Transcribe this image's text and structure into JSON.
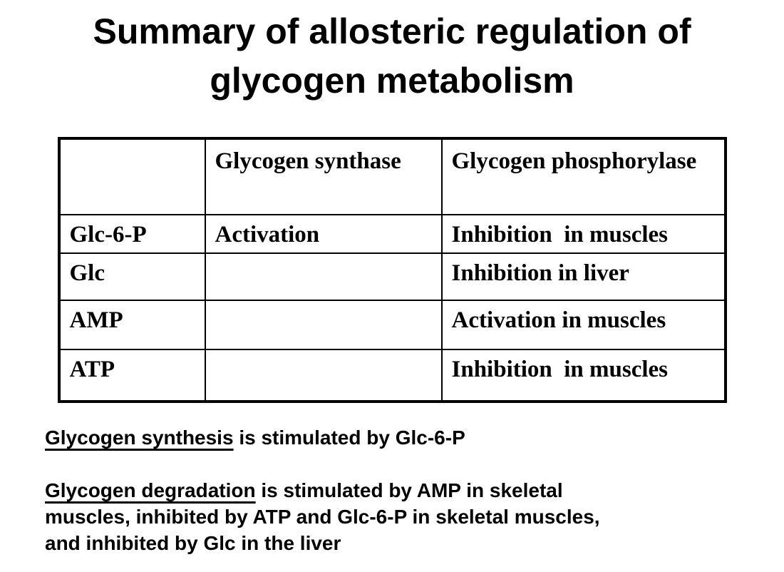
{
  "title": {
    "text": "Summary of allosteric regulation of glycogen metabolism"
  },
  "table": {
    "columns": [
      "",
      "Glycogen synthase",
      "Glycogen phosphorylase"
    ],
    "rows": [
      [
        "Glc-6-P",
        "Activation",
        "Inhibition  in muscles"
      ],
      [
        "Glc",
        "",
        "Inhibition in liver"
      ],
      [
        "AMP",
        "",
        "Activation in muscles"
      ],
      [
        "ATP",
        "",
        "Inhibition  in muscles"
      ]
    ]
  },
  "notes": {
    "synthesis": {
      "underlined": "Glycogen synthesis",
      "rest": " is stimulated by Glc-6-P"
    },
    "degradation": {
      "underlined": "Glycogen degradation",
      "rest": " is stimulated by AMP in skeletal",
      "line2": "muscles, inhibited by ATP and Glc-6-P in skeletal muscles,",
      "line3": "and inhibited by Glc in the liver"
    }
  },
  "colors": {
    "background": "#ffffff",
    "text": "#000000",
    "border": "#000000"
  }
}
